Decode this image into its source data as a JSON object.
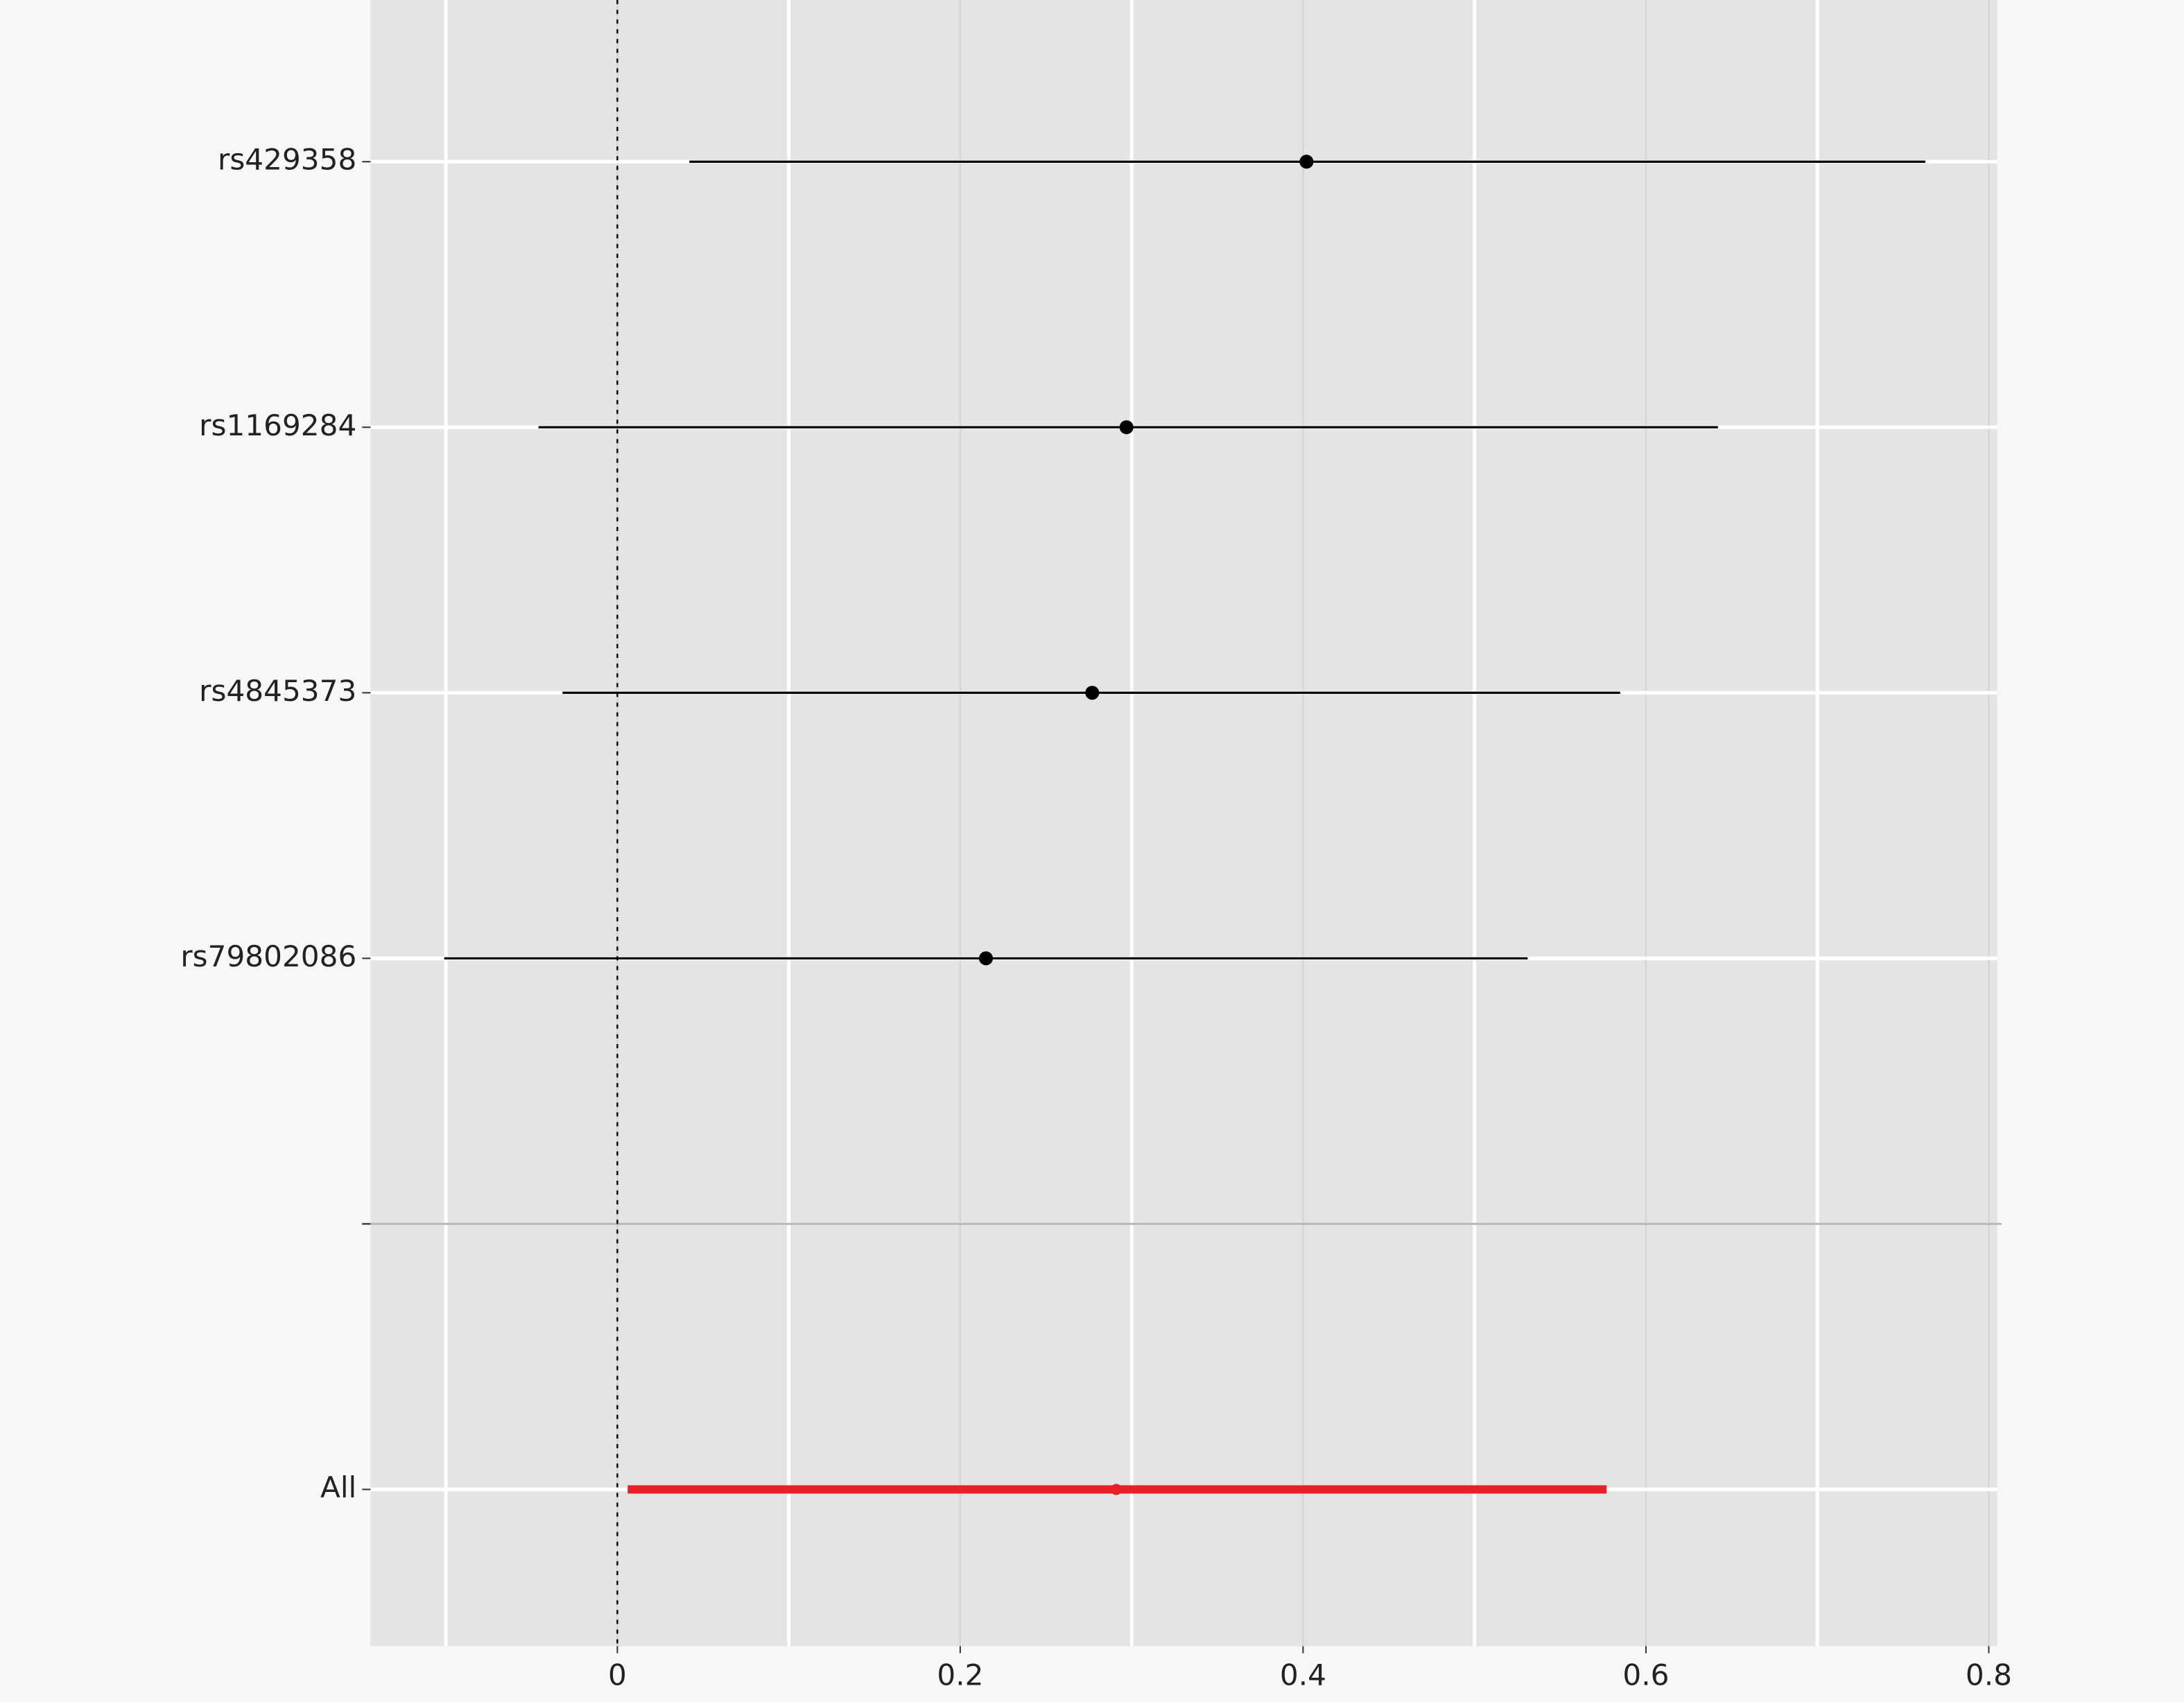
{
  "chart_data": {
    "type": "forest",
    "categories": [
      "rs429358",
      "rs1169284",
      "rs4845373",
      "rs79802086",
      null,
      "All"
    ],
    "values": [
      0.402,
      0.297,
      0.277,
      0.215,
      null,
      0.291
    ],
    "lower": [
      0.042,
      -0.046,
      -0.032,
      -0.101,
      null,
      0.006
    ],
    "upper": [
      0.763,
      0.642,
      0.585,
      0.531,
      null,
      0.577
    ],
    "colors": [
      "#000000",
      "#000000",
      "#000000",
      "#000000",
      null,
      "#e8202a"
    ],
    "xlim": [
      -0.144,
      0.805
    ],
    "xticks": [
      0,
      0.2,
      0.4,
      0.6,
      0.8
    ],
    "xminor": [
      -0.1,
      0.1,
      0.3,
      0.5,
      0.7
    ],
    "reference_line": 0,
    "grid": true
  }
}
